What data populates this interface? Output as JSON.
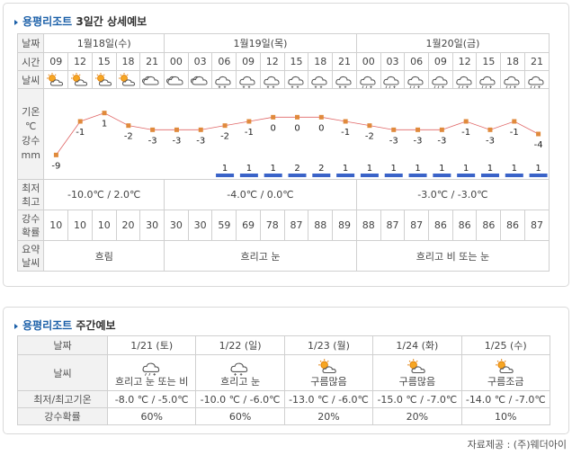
{
  "short": {
    "title": "용평리조트",
    "subtitle": "3일간 상세예보",
    "labels": {
      "date": "날짜",
      "time": "시간",
      "weather": "날씨",
      "temp1": "기온",
      "temp2": "℃",
      "precip1": "강수",
      "precip2": "mm",
      "minmax1": "최저",
      "minmax2": "최고",
      "prob1": "강수",
      "prob2": "확률",
      "summary1": "요약",
      "summary2": "날씨"
    },
    "days": [
      {
        "label": "1월18일(수)",
        "minmax": "-10.0℃ / 2.0℃",
        "summary": "흐림"
      },
      {
        "label": "1월19일(목)",
        "minmax": "-4.0℃ / 0.0℃",
        "summary": "흐리고 눈"
      },
      {
        "label": "1월20일(금)",
        "minmax": "-3.0℃ / -3.0℃",
        "summary": "흐리고 비 또는 눈"
      }
    ],
    "times": [
      "09",
      "12",
      "15",
      "18",
      "21",
      "00",
      "03",
      "06",
      "09",
      "12",
      "15",
      "18",
      "21",
      "00",
      "03",
      "06",
      "09",
      "12",
      "15",
      "18",
      "21"
    ],
    "weather_icons": [
      "partly-cloudy-sun-icon",
      "partly-cloudy-sun-icon",
      "partly-cloudy-sun-icon",
      "partly-cloudy-sun-icon",
      "cloudy-icon",
      "cloudy-icon",
      "cloudy-icon",
      "snow-icon",
      "snow-icon",
      "snow-icon",
      "snow-icon",
      "snow-icon",
      "snow-icon",
      "rain-snow-icon",
      "rain-snow-icon",
      "rain-snow-icon",
      "rain-snow-icon",
      "rain-snow-icon",
      "rain-snow-icon",
      "rain-snow-icon",
      "rain-snow-icon"
    ],
    "temps": [
      -9,
      -1,
      1,
      -2,
      -3,
      -3,
      -3,
      -2,
      -1,
      0,
      0,
      0,
      -1,
      -2,
      -3,
      -3,
      -3,
      -1,
      -3,
      -1,
      -4
    ],
    "temp_labels": [
      "-9",
      "-1",
      "1",
      "-2",
      "-3",
      "-3",
      "-3",
      "-2",
      "-1",
      "0",
      "0",
      "0",
      "-1",
      "-2",
      "-3",
      "-3",
      "-3",
      "-1",
      "-3",
      "-1",
      "-4"
    ],
    "precip_labels": [
      "",
      "",
      "",
      "",
      "",
      "",
      "",
      "1",
      "1",
      "1",
      "2",
      "2",
      "1",
      "1",
      "1",
      "1",
      "1",
      "1",
      "1",
      "1",
      "1"
    ],
    "probs": [
      "10",
      "10",
      "10",
      "20",
      "30",
      "30",
      "30",
      "59",
      "69",
      "78",
      "87",
      "88",
      "89",
      "88",
      "87",
      "87",
      "86",
      "86",
      "86",
      "86",
      "87"
    ]
  },
  "weekly": {
    "title": "용평리조트",
    "subtitle": "주간예보",
    "labels": {
      "date": "날짜",
      "weather": "날씨",
      "minmax": "최저/최고기온",
      "prob": "강수확률"
    },
    "days": [
      {
        "date": "1/21 (토)",
        "icon": "rain-snow-icon",
        "desc": "흐리고 눈 또는 비",
        "temps": "-8.0 ℃ / -5.0℃",
        "prob": "60%"
      },
      {
        "date": "1/22 (일)",
        "icon": "snow-icon",
        "desc": "흐리고 눈",
        "temps": "-10.0 ℃ / -6.0℃",
        "prob": "60%"
      },
      {
        "date": "1/23 (월)",
        "icon": "partly-cloudy-sun-icon",
        "desc": "구름많음",
        "temps": "-13.0 ℃ / -6.0℃",
        "prob": "20%"
      },
      {
        "date": "1/24 (화)",
        "icon": "partly-cloudy-sun-icon",
        "desc": "구름많음",
        "temps": "-15.0 ℃ / -7.0℃",
        "prob": "20%"
      },
      {
        "date": "1/25 (수)",
        "icon": "partly-cloudy-sun-icon",
        "desc": "구름조금",
        "temps": "-14.0 ℃ / -7.0℃",
        "prob": "10%"
      }
    ]
  },
  "source": "자료제공 : (주)웨더아이",
  "colors": {
    "accent": "#1a5fa8",
    "line": "#e06666",
    "marker": "#e08a3c",
    "precip_bar": "#3a63c8"
  }
}
